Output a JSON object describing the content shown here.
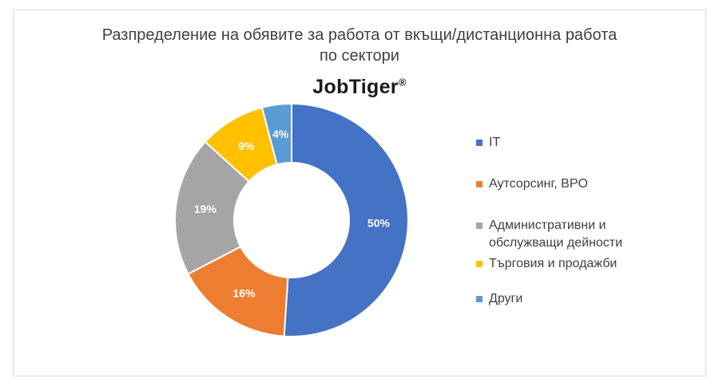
{
  "chart_data": {
    "type": "pie",
    "title_lines": [
      "Разпределение на обявите за работа от вкъщи/дистанционна работа",
      "по сектори"
    ],
    "brand": "JobTiger",
    "brand_mark": "®",
    "categories": [
      "IT",
      "Аутсорсинг, BPO",
      "Административни и обслужващи дейности",
      "Търговия и продажби",
      "Други"
    ],
    "values": [
      50,
      16,
      19,
      9,
      4
    ],
    "labels": [
      "50%",
      "16%",
      "19%",
      "9%",
      "4%"
    ],
    "colors": [
      "#4472C4",
      "#ED7D31",
      "#A5A5A5",
      "#FFC000",
      "#5B9BD5"
    ],
    "legend": [
      {
        "lines": [
          "IT"
        ]
      },
      {
        "lines": [
          "Аутсорсинг, BPO"
        ]
      },
      {
        "lines": [
          "Административни и",
          "обслужващи дейности"
        ]
      },
      {
        "lines": [
          "Търговия и продажби"
        ]
      },
      {
        "lines": [
          "Други"
        ]
      }
    ],
    "legend_position": "right",
    "hole": "donut"
  }
}
